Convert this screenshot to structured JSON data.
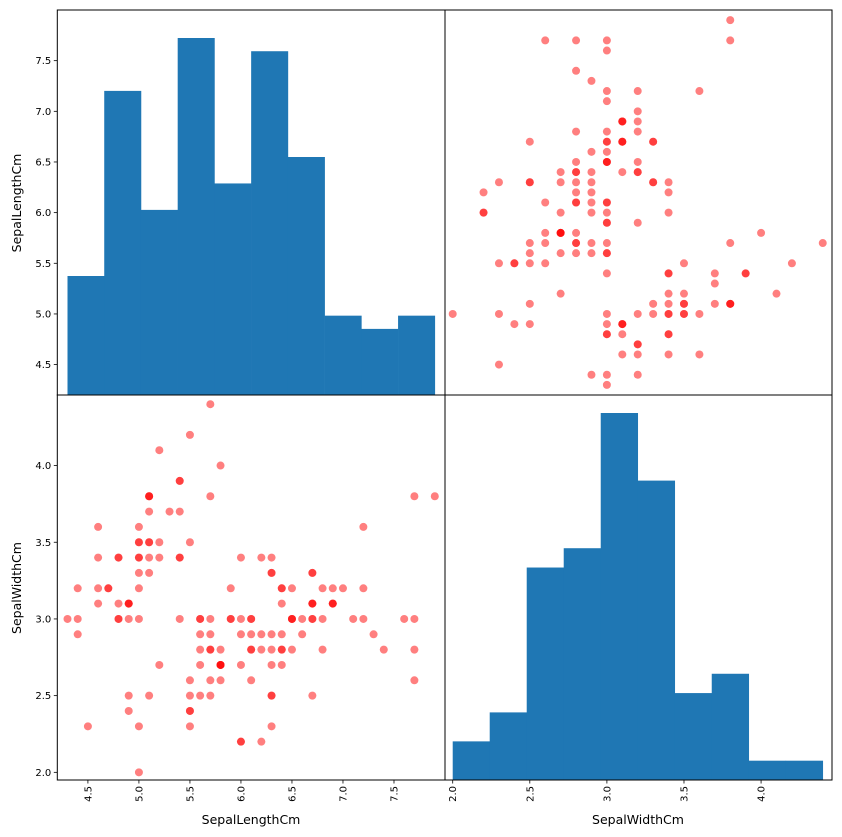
{
  "chart_data": {
    "type": "scatter_matrix",
    "variables": [
      "SepalLengthCm",
      "SepalWidthCm"
    ],
    "colors": {
      "hist": "#1f77b4",
      "scatter": "#ff0000",
      "scatter_alpha": 0.5,
      "frame": "#000000"
    },
    "axes": {
      "SepalLengthCm": {
        "label": "SepalLengthCm",
        "range": [
          4.2,
          8.0
        ],
        "ticks": [
          4.5,
          5.0,
          5.5,
          6.0,
          6.5,
          7.0,
          7.5
        ],
        "tick_labels": [
          "4.5",
          "5.0",
          "5.5",
          "6.0",
          "6.5",
          "7.0",
          "7.5"
        ]
      },
      "SepalWidthCm": {
        "label": "SepalWidthCm",
        "range": [
          1.95,
          4.46
        ],
        "ticks": [
          2.0,
          2.5,
          3.0,
          3.5,
          4.0
        ],
        "tick_labels": [
          "2.0",
          "2.5",
          "3.0",
          "3.5",
          "4.0"
        ]
      }
    },
    "histograms": {
      "SepalLengthCm": {
        "bin_edges": [
          4.3,
          4.66,
          5.02,
          5.38,
          5.74,
          6.1,
          6.46,
          6.82,
          7.18,
          7.54,
          7.9
        ],
        "counts": [
          9,
          23,
          14,
          27,
          16,
          26,
          18,
          6,
          5,
          6
        ]
      },
      "SepalWidthCm": {
        "bin_edges": [
          2.0,
          2.24,
          2.48,
          2.72,
          2.96,
          3.2,
          3.44,
          3.68,
          3.92,
          4.16,
          4.4
        ],
        "counts": [
          4,
          7,
          22,
          24,
          38,
          31,
          9,
          11,
          2,
          2
        ]
      }
    },
    "points": {
      "SepalLengthCm": [
        5.1,
        4.9,
        4.7,
        4.6,
        5.0,
        5.4,
        4.6,
        5.0,
        4.4,
        4.9,
        5.4,
        4.8,
        4.8,
        4.3,
        5.8,
        5.7,
        5.4,
        5.1,
        5.7,
        5.1,
        5.4,
        5.1,
        4.6,
        5.1,
        4.8,
        5.0,
        5.0,
        5.2,
        5.2,
        4.7,
        4.8,
        5.4,
        5.2,
        5.5,
        4.9,
        5.0,
        5.5,
        4.9,
        4.4,
        5.1,
        5.0,
        4.5,
        4.4,
        5.0,
        5.1,
        4.8,
        5.1,
        4.6,
        5.3,
        5.0,
        7.0,
        6.4,
        6.9,
        5.5,
        6.5,
        5.7,
        6.3,
        4.9,
        6.6,
        5.2,
        5.0,
        5.9,
        6.0,
        6.1,
        5.6,
        6.7,
        5.6,
        5.8,
        6.2,
        5.6,
        5.9,
        6.1,
        6.3,
        6.1,
        6.4,
        6.6,
        6.8,
        6.7,
        6.0,
        5.7,
        5.5,
        5.5,
        5.8,
        6.0,
        5.4,
        6.0,
        6.7,
        6.3,
        5.6,
        5.5,
        5.5,
        6.1,
        5.8,
        5.0,
        5.6,
        5.7,
        5.7,
        6.2,
        5.1,
        5.7,
        6.3,
        5.8,
        7.1,
        6.3,
        6.5,
        7.6,
        4.9,
        7.3,
        6.7,
        7.2,
        6.5,
        6.4,
        6.8,
        5.7,
        5.8,
        6.4,
        6.5,
        7.7,
        7.7,
        6.0,
        6.9,
        5.6,
        7.7,
        6.3,
        6.7,
        7.2,
        6.2,
        6.1,
        6.4,
        7.2,
        7.4,
        7.9,
        6.4,
        6.3,
        6.1,
        7.7,
        6.3,
        6.4,
        6.0,
        6.9,
        6.7,
        6.9,
        5.8,
        6.8,
        6.7,
        6.7,
        6.3,
        6.5,
        6.2,
        5.9
      ],
      "SepalWidthCm": [
        3.5,
        3.0,
        3.2,
        3.1,
        3.6,
        3.9,
        3.4,
        3.4,
        2.9,
        3.1,
        3.7,
        3.4,
        3.0,
        3.0,
        4.0,
        4.4,
        3.9,
        3.5,
        3.8,
        3.8,
        3.4,
        3.7,
        3.6,
        3.3,
        3.4,
        3.0,
        3.4,
        3.5,
        3.4,
        3.2,
        3.1,
        3.4,
        4.1,
        4.2,
        3.1,
        3.2,
        3.5,
        3.1,
        3.0,
        3.4,
        3.5,
        2.3,
        3.2,
        3.5,
        3.8,
        3.0,
        3.8,
        3.2,
        3.7,
        3.3,
        3.2,
        3.2,
        3.1,
        2.3,
        2.8,
        2.8,
        3.3,
        2.4,
        2.9,
        2.7,
        2.0,
        3.0,
        2.2,
        2.9,
        2.9,
        3.1,
        3.0,
        2.7,
        2.2,
        2.5,
        3.2,
        2.8,
        2.5,
        2.8,
        2.9,
        3.0,
        2.8,
        3.0,
        2.9,
        2.6,
        2.4,
        2.4,
        2.7,
        2.7,
        3.0,
        3.4,
        3.1,
        2.3,
        3.0,
        2.5,
        2.6,
        3.0,
        2.6,
        2.3,
        2.7,
        3.0,
        2.9,
        2.9,
        2.5,
        2.8,
        3.3,
        2.7,
        3.0,
        2.9,
        3.0,
        3.0,
        2.5,
        2.9,
        2.5,
        3.6,
        3.2,
        2.7,
        3.0,
        2.5,
        2.8,
        3.2,
        3.0,
        3.8,
        2.6,
        2.2,
        3.2,
        2.8,
        2.8,
        2.7,
        3.3,
        3.2,
        2.8,
        3.0,
        2.8,
        3.0,
        2.8,
        3.8,
        2.8,
        2.8,
        2.6,
        3.0,
        3.4,
        3.1,
        3.0,
        3.1,
        3.1,
        3.1,
        2.7,
        3.2,
        3.3,
        3.0,
        2.5,
        3.0,
        3.4,
        3.0
      ]
    },
    "panels": [
      {
        "row": "SepalLengthCm",
        "col": "SepalLengthCm",
        "kind": "hist"
      },
      {
        "row": "SepalLengthCm",
        "col": "SepalWidthCm",
        "kind": "scatter"
      },
      {
        "row": "SepalWidthCm",
        "col": "SepalLengthCm",
        "kind": "scatter"
      },
      {
        "row": "SepalWidthCm",
        "col": "SepalWidthCm",
        "kind": "hist"
      }
    ],
    "grid": false,
    "legend": "none"
  }
}
